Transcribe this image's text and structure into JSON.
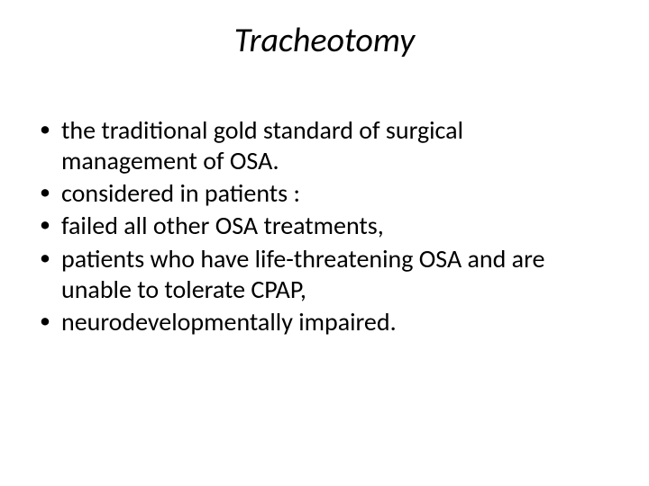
{
  "slide": {
    "title": "Tracheotomy",
    "bullets": [
      "the traditional gold standard of surgical management of OSA.",
      "considered in patients :",
      " failed all other OSA treatments,",
      "patients who have life-threatening OSA and are unable to tolerate CPAP,",
      "neurodevelopmentally impaired."
    ],
    "style": {
      "background": "#ffffff",
      "text_color": "#000000",
      "title_fontsize": 38,
      "title_italic": true,
      "body_fontsize": 28,
      "bullet_char": "•",
      "font_family": "Calibri"
    }
  }
}
